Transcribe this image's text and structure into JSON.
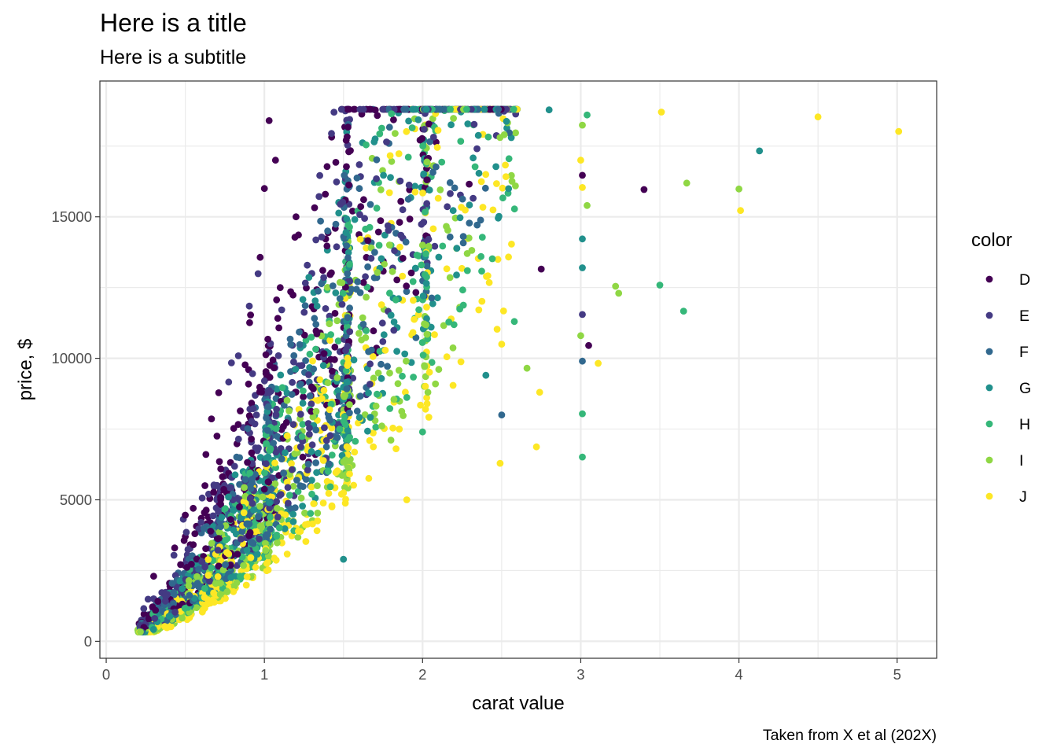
{
  "chart_data": {
    "type": "scatter",
    "title": "Here is a title",
    "subtitle": "Here is a subtitle",
    "xlabel": "carat value",
    "ylabel": "price, $",
    "caption": "Taken from X et al (202X)",
    "xlim": [
      -0.04,
      5.25
    ],
    "ylim": [
      -600,
      19800
    ],
    "x_ticks": [
      0,
      1,
      2,
      3,
      4,
      5
    ],
    "y_ticks": [
      0,
      5000,
      10000,
      15000
    ],
    "grid": true,
    "theme": "bw",
    "legend": {
      "title": "color",
      "position": "right",
      "entries": [
        "D",
        "E",
        "F",
        "G",
        "H",
        "I",
        "J"
      ]
    },
    "colors": {
      "D": "#440154",
      "E": "#443A83",
      "F": "#31688E",
      "G": "#21908C",
      "H": "#35B779",
      "I": "#8FD744",
      "J": "#FDE725"
    },
    "series": [
      {
        "name": "D",
        "points": [
          [
            3.4,
            15964
          ],
          [
            3.05,
            10453
          ],
          [
            1.03,
            18400
          ],
          [
            1.0,
            16000
          ],
          [
            0.63,
            6600
          ],
          [
            0.55,
            4700
          ],
          [
            2.75,
            13156
          ],
          [
            3.01,
            16469
          ],
          [
            1.1,
            12500
          ],
          [
            0.9,
            9600
          ],
          [
            0.3,
            2300
          ],
          [
            0.5,
            3700
          ],
          [
            1.2,
            15000
          ],
          [
            1.07,
            17000
          ]
        ]
      },
      {
        "name": "E",
        "points": [
          [
            3.01,
            11548
          ],
          [
            1.44,
            18700
          ],
          [
            0.7,
            5000
          ],
          [
            0.6,
            4200
          ],
          [
            0.3,
            1500
          ],
          [
            1.3,
            13000
          ],
          [
            0.95,
            8000
          ]
        ]
      },
      {
        "name": "F",
        "points": [
          [
            3.01,
            9900
          ],
          [
            2.5,
            8000
          ],
          [
            1.6,
            16000
          ],
          [
            0.8,
            5200
          ],
          [
            0.4,
            1300
          ],
          [
            1.4,
            14500
          ]
        ]
      },
      {
        "name": "G",
        "points": [
          [
            4.13,
            17329
          ],
          [
            3.01,
            14220
          ],
          [
            3.01,
            13200
          ],
          [
            2.4,
            9400
          ],
          [
            2.8,
            18780
          ],
          [
            1.52,
            18000
          ],
          [
            0.9,
            6000
          ],
          [
            1.5,
            2900
          ]
        ]
      },
      {
        "name": "H",
        "points": [
          [
            3.65,
            11668
          ],
          [
            3.5,
            12587
          ],
          [
            3.01,
            6512
          ],
          [
            3.01,
            8040
          ],
          [
            3.04,
            18600
          ],
          [
            2.58,
            11300
          ],
          [
            2.0,
            7400
          ],
          [
            1.3,
            5200
          ]
        ]
      },
      {
        "name": "I",
        "points": [
          [
            4.0,
            15984
          ],
          [
            3.67,
            16193
          ],
          [
            3.22,
            12545
          ],
          [
            3.24,
            12300
          ],
          [
            3.01,
            18242
          ],
          [
            3.0,
            10800
          ],
          [
            3.04,
            15400
          ],
          [
            2.66,
            9650
          ],
          [
            2.0,
            14000
          ],
          [
            1.7,
            7800
          ]
        ]
      },
      {
        "name": "J",
        "points": [
          [
            5.01,
            18018
          ],
          [
            4.5,
            18531
          ],
          [
            3.51,
            18701
          ],
          [
            4.01,
            15223
          ],
          [
            3.11,
            9823
          ],
          [
            3.01,
            16037
          ],
          [
            3.0,
            17000
          ],
          [
            2.72,
            6870
          ],
          [
            2.49,
            6289
          ],
          [
            2.74,
            8800
          ],
          [
            2.5,
            10500
          ],
          [
            1.9,
            5000
          ],
          [
            1.2,
            4000
          ]
        ]
      }
    ],
    "bulk": {
      "note": "dense cloud of ~3000 additional points per the depicted distribution",
      "n": 3000
    }
  }
}
